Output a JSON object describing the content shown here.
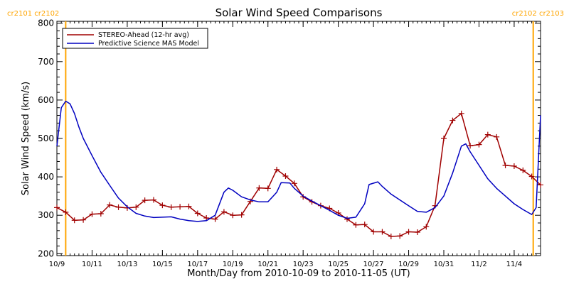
{
  "chart_data": {
    "type": "line",
    "title": "Solar Wind Speed Comparisons",
    "xlabel": "Month/Day from 2010-10-09 to 2010-11-05 (UT)",
    "ylabel": "Solar Wind Speed (km/s)",
    "xlim": [
      "2010-10-09T00:00",
      "2010-11-05T12:00"
    ],
    "ylim": [
      195,
      805
    ],
    "y_ticks": [
      200,
      300,
      400,
      500,
      600,
      700,
      800
    ],
    "x_ticks": [
      {
        "date": "2010-10-09",
        "label": "10/9"
      },
      {
        "date": "2010-10-11",
        "label": "10/11"
      },
      {
        "date": "2010-10-13",
        "label": "10/13"
      },
      {
        "date": "2010-10-15",
        "label": "10/15"
      },
      {
        "date": "2010-10-17",
        "label": "10/17"
      },
      {
        "date": "2010-10-19",
        "label": "10/19"
      },
      {
        "date": "2010-10-21",
        "label": "10/21"
      },
      {
        "date": "2010-10-23",
        "label": "10/23"
      },
      {
        "date": "2010-10-25",
        "label": "10/25"
      },
      {
        "date": "2010-10-27",
        "label": "10/27"
      },
      {
        "date": "2010-10-29",
        "label": "10/29"
      },
      {
        "date": "2010-10-31",
        "label": "10/31"
      },
      {
        "date": "2010-11-02",
        "label": "11/2"
      },
      {
        "date": "2010-11-04",
        "label": "11/4"
      }
    ],
    "legend_position": "top-left",
    "carrington_markers": [
      {
        "date": "2010-10-09T12:00",
        "label": "cr2101 cr2102",
        "color": "#ffa500"
      },
      {
        "date": "2010-11-05T02:00",
        "label": "cr2102 cr2103",
        "color": "#ffa500"
      }
    ],
    "series": [
      {
        "name": "STEREO-Ahead (12-hr avg)",
        "color": "#a00000",
        "marker": "plus",
        "points": [
          [
            "2010-10-09T00:00",
            320
          ],
          [
            "2010-10-09T12:00",
            308
          ],
          [
            "2010-10-10T00:00",
            287
          ],
          [
            "2010-10-10T12:00",
            288
          ],
          [
            "2010-10-11T00:00",
            303
          ],
          [
            "2010-10-11T12:00",
            304
          ],
          [
            "2010-10-12T00:00",
            327
          ],
          [
            "2010-10-12T12:00",
            321
          ],
          [
            "2010-10-13T00:00",
            319
          ],
          [
            "2010-10-13T12:00",
            321
          ],
          [
            "2010-10-14T00:00",
            339
          ],
          [
            "2010-10-14T12:00",
            340
          ],
          [
            "2010-10-15T00:00",
            326
          ],
          [
            "2010-10-15T12:00",
            321
          ],
          [
            "2010-10-16T00:00",
            322
          ],
          [
            "2010-10-16T12:00",
            323
          ],
          [
            "2010-10-17T00:00",
            305
          ],
          [
            "2010-10-17T12:00",
            293
          ],
          [
            "2010-10-18T00:00",
            290
          ],
          [
            "2010-10-18T12:00",
            309
          ],
          [
            "2010-10-19T00:00",
            300
          ],
          [
            "2010-10-19T12:00",
            301
          ],
          [
            "2010-10-20T00:00",
            336
          ],
          [
            "2010-10-20T12:00",
            371
          ],
          [
            "2010-10-21T00:00",
            370
          ],
          [
            "2010-10-21T12:00",
            419
          ],
          [
            "2010-10-22T00:00",
            402
          ],
          [
            "2010-10-22T12:00",
            383
          ],
          [
            "2010-10-23T00:00",
            348
          ],
          [
            "2010-10-23T12:00",
            335
          ],
          [
            "2010-10-24T00:00",
            325
          ],
          [
            "2010-10-24T12:00",
            318
          ],
          [
            "2010-10-25T00:00",
            306
          ],
          [
            "2010-10-25T12:00",
            290
          ],
          [
            "2010-10-26T00:00",
            275
          ],
          [
            "2010-10-26T12:00",
            276
          ],
          [
            "2010-10-27T00:00",
            257
          ],
          [
            "2010-10-27T12:00",
            257
          ],
          [
            "2010-10-28T00:00",
            245
          ],
          [
            "2010-10-28T12:00",
            246
          ],
          [
            "2010-10-29T00:00",
            257
          ],
          [
            "2010-10-29T12:00",
            256
          ],
          [
            "2010-10-30T00:00",
            270
          ],
          [
            "2010-10-30T12:00",
            325
          ],
          [
            "2010-10-31T00:00",
            500
          ],
          [
            "2010-10-31T12:00",
            547
          ],
          [
            "2010-11-01T00:00",
            565
          ],
          [
            "2010-11-01T12:00",
            481
          ],
          [
            "2010-11-02T00:00",
            484
          ],
          [
            "2010-11-02T12:00",
            510
          ],
          [
            "2010-11-03T00:00",
            504
          ],
          [
            "2010-11-03T12:00",
            430
          ],
          [
            "2010-11-04T00:00",
            428
          ],
          [
            "2010-11-04T12:00",
            417
          ],
          [
            "2010-11-05T00:00",
            401
          ],
          [
            "2010-11-05T12:00",
            379
          ]
        ]
      },
      {
        "name": "Predictive Science MAS Model",
        "color": "#0000c0",
        "marker": "none",
        "points": [
          [
            "2010-10-09T00:00",
            480
          ],
          [
            "2010-10-09T06:00",
            580
          ],
          [
            "2010-10-09T12:00",
            597
          ],
          [
            "2010-10-09T18:00",
            590
          ],
          [
            "2010-10-10T00:00",
            565
          ],
          [
            "2010-10-10T06:00",
            530
          ],
          [
            "2010-10-10T12:00",
            500
          ],
          [
            "2010-10-11T00:00",
            455
          ],
          [
            "2010-10-11T12:00",
            412
          ],
          [
            "2010-10-12T00:00",
            378
          ],
          [
            "2010-10-12T12:00",
            345
          ],
          [
            "2010-10-13T00:00",
            322
          ],
          [
            "2010-10-13T12:00",
            305
          ],
          [
            "2010-10-14T00:00",
            298
          ],
          [
            "2010-10-14T12:00",
            294
          ],
          [
            "2010-10-15T00:00",
            295
          ],
          [
            "2010-10-15T12:00",
            296
          ],
          [
            "2010-10-16T00:00",
            290
          ],
          [
            "2010-10-16T12:00",
            286
          ],
          [
            "2010-10-17T00:00",
            284
          ],
          [
            "2010-10-17T12:00",
            286
          ],
          [
            "2010-10-18T00:00",
            300
          ],
          [
            "2010-10-18T12:00",
            360
          ],
          [
            "2010-10-18T18:00",
            371
          ],
          [
            "2010-10-19T00:00",
            365
          ],
          [
            "2010-10-19T12:00",
            348
          ],
          [
            "2010-10-20T00:00",
            340
          ],
          [
            "2010-10-20T12:00",
            335
          ],
          [
            "2010-10-21T00:00",
            335
          ],
          [
            "2010-10-21T12:00",
            360
          ],
          [
            "2010-10-21T18:00",
            385
          ],
          [
            "2010-10-22T06:00",
            384
          ],
          [
            "2010-10-22T12:00",
            370
          ],
          [
            "2010-10-23T00:00",
            350
          ],
          [
            "2010-10-23T12:00",
            337
          ],
          [
            "2010-10-24T00:00",
            325
          ],
          [
            "2010-10-24T12:00",
            313
          ],
          [
            "2010-10-25T00:00",
            300
          ],
          [
            "2010-10-25T12:00",
            292
          ],
          [
            "2010-10-26T00:00",
            295
          ],
          [
            "2010-10-26T12:00",
            330
          ],
          [
            "2010-10-26T18:00",
            380
          ],
          [
            "2010-10-27T06:00",
            387
          ],
          [
            "2010-10-27T12:00",
            375
          ],
          [
            "2010-10-28T00:00",
            355
          ],
          [
            "2010-10-28T12:00",
            340
          ],
          [
            "2010-10-29T00:00",
            325
          ],
          [
            "2010-10-29T12:00",
            310
          ],
          [
            "2010-10-30T00:00",
            308
          ],
          [
            "2010-10-30T12:00",
            320
          ],
          [
            "2010-10-31T00:00",
            350
          ],
          [
            "2010-10-31T12:00",
            410
          ],
          [
            "2010-11-01T00:00",
            480
          ],
          [
            "2010-11-01T06:00",
            486
          ],
          [
            "2010-11-01T12:00",
            465
          ],
          [
            "2010-11-02T00:00",
            430
          ],
          [
            "2010-11-02T12:00",
            395
          ],
          [
            "2010-11-03T00:00",
            370
          ],
          [
            "2010-11-03T12:00",
            350
          ],
          [
            "2010-11-04T00:00",
            330
          ],
          [
            "2010-11-04T12:00",
            315
          ],
          [
            "2010-11-05T00:00",
            302
          ],
          [
            "2010-11-05T06:00",
            320
          ],
          [
            "2010-11-05T12:00",
            560
          ]
        ]
      }
    ]
  }
}
